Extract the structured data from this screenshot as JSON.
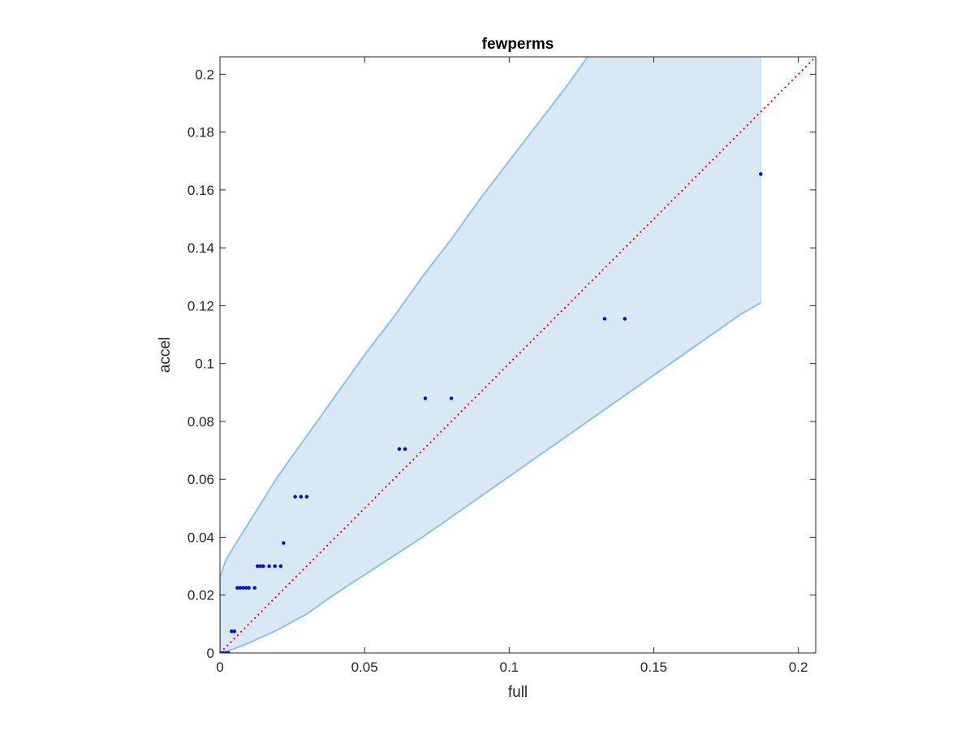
{
  "chart_data": {
    "type": "scatter",
    "title": "fewperms",
    "xlabel": "full",
    "ylabel": "accel",
    "xlim": [
      0,
      0.206
    ],
    "ylim": [
      0,
      0.206
    ],
    "x_ticks": [
      0,
      0.05,
      0.1,
      0.15,
      0.2
    ],
    "x_tick_labels": [
      "0",
      "0.05",
      "0.1",
      "0.15",
      "0.2"
    ],
    "y_ticks": [
      0,
      0.02,
      0.04,
      0.06,
      0.08,
      0.1,
      0.12,
      0.14,
      0.16,
      0.18,
      0.2
    ],
    "y_tick_labels": [
      "0",
      "0.02",
      "0.04",
      "0.06",
      "0.08",
      "0.1",
      "0.12",
      "0.14",
      "0.16",
      "0.18",
      "0.2"
    ],
    "grid": false,
    "colors": {
      "points": "#0000ee",
      "band_fill": "#d9e8f5",
      "band_edge": "#8ec2e2",
      "reference_line": "#ff0000",
      "axes": "#262626"
    },
    "points": {
      "x": [
        0.0,
        0.001,
        0.002,
        0.003,
        0.004,
        0.005,
        0.006,
        0.007,
        0.008,
        0.009,
        0.01,
        0.012,
        0.013,
        0.014,
        0.015,
        0.017,
        0.019,
        0.021,
        0.022,
        0.026,
        0.028,
        0.03,
        0.062,
        0.064,
        0.071,
        0.08,
        0.133,
        0.14,
        0.187
      ],
      "y": [
        0.0,
        0.0,
        0.0,
        0.0,
        0.0075,
        0.0075,
        0.0225,
        0.0225,
        0.0225,
        0.0225,
        0.0225,
        0.0225,
        0.03,
        0.03,
        0.03,
        0.03,
        0.03,
        0.03,
        0.038,
        0.054,
        0.054,
        0.054,
        0.0705,
        0.0705,
        0.088,
        0.088,
        0.1155,
        0.1155,
        0.1655
      ]
    },
    "band": {
      "x": [
        0,
        0.002,
        0.005,
        0.01,
        0.02,
        0.03,
        0.04,
        0.05,
        0.06,
        0.07,
        0.08,
        0.09,
        0.1,
        0.11,
        0.12,
        0.13,
        0.14,
        0.15,
        0.16,
        0.17,
        0.18,
        0.187
      ],
      "upper": [
        0.026,
        0.032,
        0.037,
        0.045,
        0.061,
        0.075,
        0.089,
        0.103,
        0.116,
        0.13,
        0.143,
        0.157,
        0.17,
        0.183,
        0.196,
        0.21,
        0.223,
        0.236,
        0.249,
        0.262,
        0.275,
        0.284
      ],
      "lower": [
        0.0,
        0.0005,
        0.0015,
        0.0035,
        0.008,
        0.0135,
        0.0205,
        0.027,
        0.0335,
        0.04,
        0.047,
        0.054,
        0.061,
        0.068,
        0.075,
        0.082,
        0.089,
        0.096,
        0.103,
        0.11,
        0.117,
        0.121
      ]
    },
    "reference_line": {
      "x": [
        0,
        0.206
      ],
      "y": [
        0,
        0.206
      ],
      "style": "dotted"
    }
  }
}
